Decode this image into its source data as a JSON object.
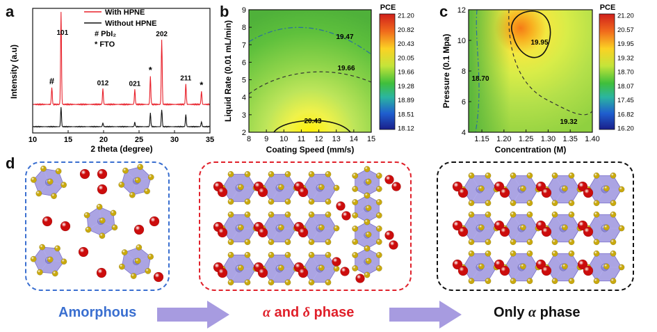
{
  "panels": {
    "a": "a",
    "b": "b",
    "c": "c",
    "d": "d"
  },
  "colors": {
    "with_hpne": "#e8202a",
    "without_hpne": "#111111",
    "amorphous": "#3a6fd0",
    "alpha_delta": "#e0202a",
    "only_alpha": "#111111",
    "arrow": "#a79be0",
    "octahedron": "#8f86d9",
    "iodide": "#c9a90e",
    "cation": "#cc0c0c"
  },
  "chart_data": [
    {
      "type": "line",
      "xlabel": "2 theta (degree)",
      "ylabel": "Intensity (a.u)",
      "xlim": [
        10,
        35
      ],
      "x_ticks": [
        "10",
        "15",
        "20",
        "25",
        "30",
        "35"
      ],
      "legend": [
        "With HPNE",
        "Without  HPNE",
        "#  PbI₂",
        "*  FTO"
      ],
      "series": [
        {
          "name": "With HPNE",
          "peaks": [
            [
              12.7,
              0.18
            ],
            [
              14.0,
              1.0
            ],
            [
              19.9,
              0.17
            ],
            [
              24.4,
              0.16
            ],
            [
              26.6,
              0.3
            ],
            [
              28.2,
              0.7
            ],
            [
              31.6,
              0.22
            ],
            [
              33.8,
              0.14
            ]
          ]
        },
        {
          "name": "Without  HPNE",
          "peaks": [
            [
              14.0,
              0.32
            ],
            [
              19.9,
              0.06
            ],
            [
              24.4,
              0.07
            ],
            [
              26.6,
              0.22
            ],
            [
              28.2,
              0.28
            ],
            [
              31.6,
              0.2
            ],
            [
              33.8,
              0.08
            ]
          ]
        }
      ],
      "peak_labels": [
        {
          "x": 12.7,
          "text": "#"
        },
        {
          "x": 14.0,
          "text": "101"
        },
        {
          "x": 19.9,
          "text": "012"
        },
        {
          "x": 24.4,
          "text": "021"
        },
        {
          "x": 26.6,
          "text": "*"
        },
        {
          "x": 28.2,
          "text": "202"
        },
        {
          "x": 31.6,
          "text": "211"
        },
        {
          "x": 33.8,
          "text": "*"
        }
      ]
    },
    {
      "type": "heatmap",
      "xlabel": "Coating Speed (mm/s)",
      "ylabel": "Liquid Rate (0.01 mL/min)",
      "xlim": [
        8,
        15
      ],
      "ylim": [
        2,
        9
      ],
      "x_ticks": [
        "8",
        "9",
        "10",
        "11",
        "12",
        "13",
        "14",
        "15"
      ],
      "y_ticks": [
        "2",
        "3",
        "4",
        "5",
        "6",
        "7",
        "8",
        "9"
      ],
      "contour_labels": [
        "19.47",
        "19.66",
        "20.43"
      ],
      "colorbar_title": "PCE",
      "colorbar_ticks": [
        "21.20",
        "20.82",
        "20.43",
        "20.05",
        "19.66",
        "19.28",
        "18.89",
        "18.51",
        "18.12"
      ]
    },
    {
      "type": "heatmap",
      "xlabel": "Concentration (M)",
      "ylabel": "Pressure (0.1 Mpa)",
      "xlim": [
        1.12,
        1.4
      ],
      "ylim": [
        4,
        12
      ],
      "x_ticks": [
        "1.15",
        "1.20",
        "1.25",
        "1.30",
        "1.35",
        "1.40"
      ],
      "y_ticks": [
        "4",
        "6",
        "8",
        "10",
        "12"
      ],
      "contour_labels": [
        "19.95",
        "18.70",
        "19.32"
      ],
      "colorbar_title": "PCE",
      "colorbar_ticks": [
        "21.20",
        "20.57",
        "19.95",
        "19.32",
        "18.70",
        "18.07",
        "17.45",
        "16.82",
        "16.20"
      ]
    }
  ],
  "phases": {
    "amorphous": "Amorphous",
    "alpha_delta_alpha": "α",
    "alpha_delta_and": " and ",
    "alpha_delta_delta": "δ",
    "alpha_delta_phase": " phase",
    "only_alpha_prefix": "Only ",
    "only_alpha_alpha": "α",
    "only_alpha_phase": " phase"
  }
}
